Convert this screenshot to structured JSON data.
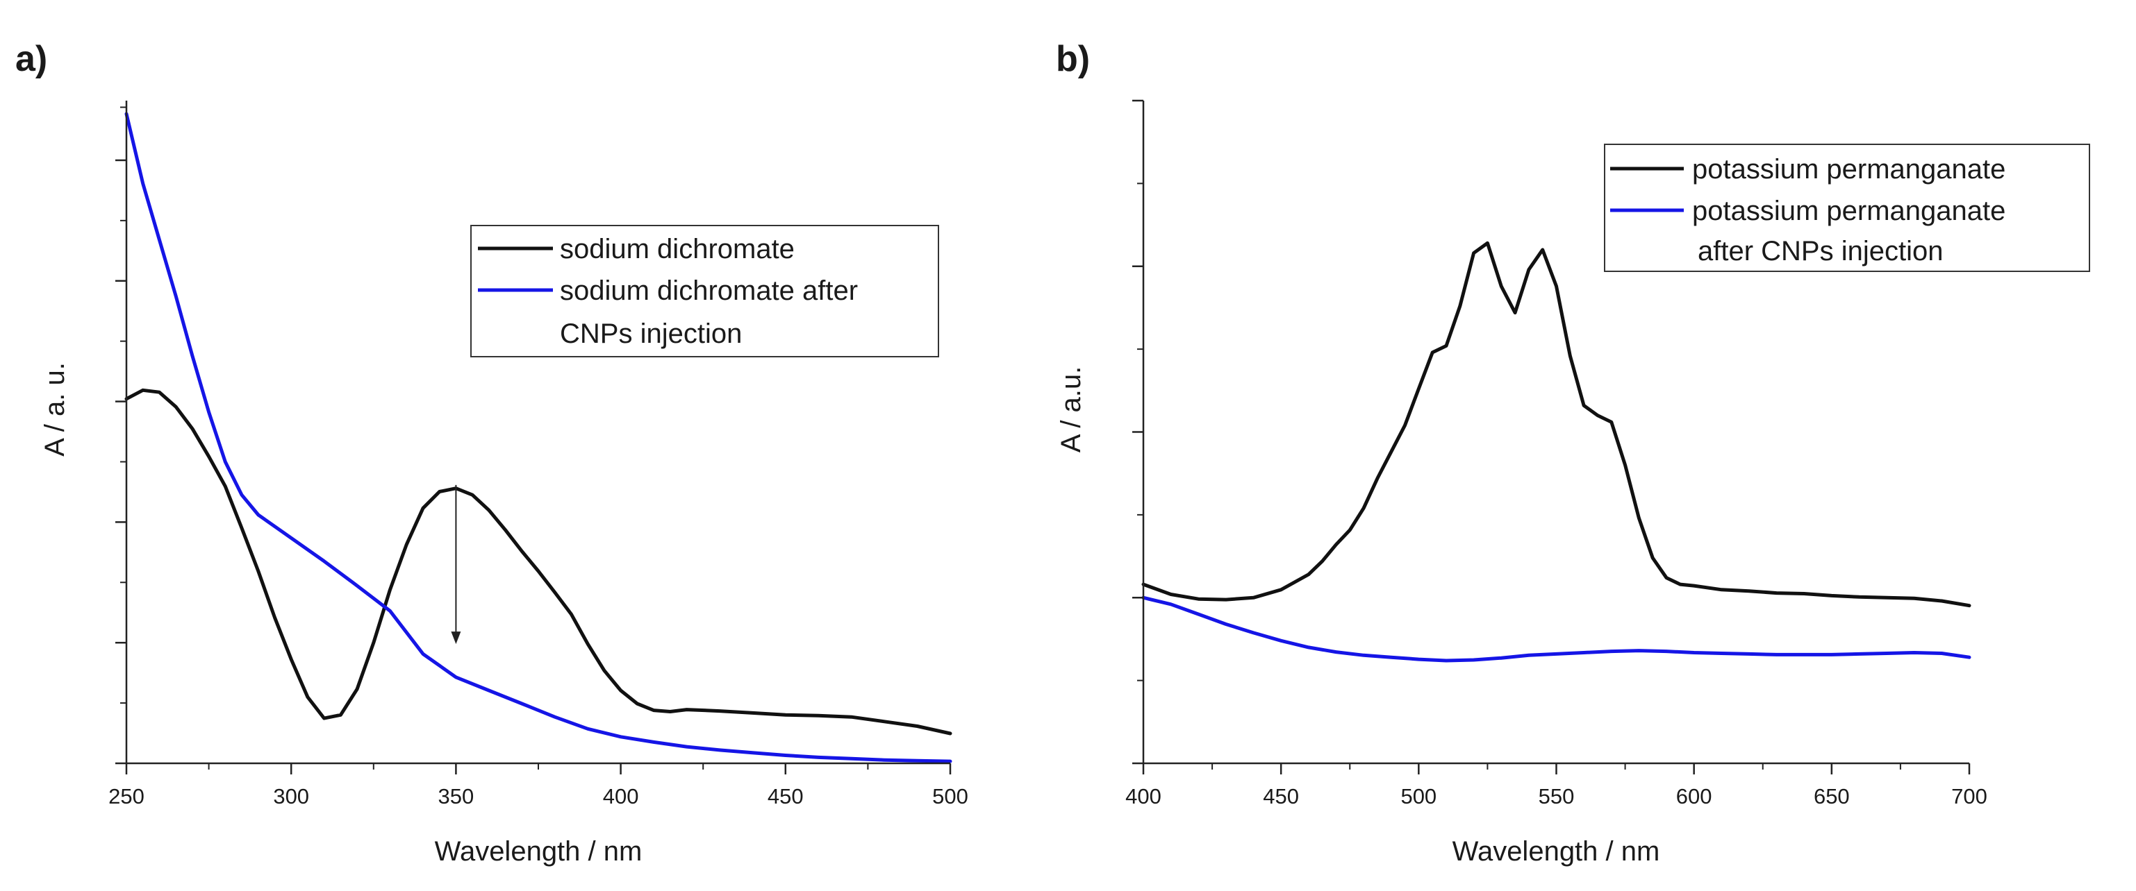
{
  "chart_data": [
    {
      "panel": "a)",
      "type": "line",
      "title": "",
      "xlabel": "Wavelength / nm",
      "ylabel": "A / a. u.",
      "xlim": [
        250,
        500
      ],
      "ylim": [
        0,
        1
      ],
      "xticks": [
        250,
        300,
        350,
        400,
        450,
        500
      ],
      "xtick_labels": [
        "250",
        "300",
        "350",
        "400",
        "450",
        "500"
      ],
      "y_major_ticks": [
        0,
        0.182,
        0.364,
        0.546,
        0.728,
        0.91
      ],
      "y_minor_ticks": [
        0.091,
        0.273,
        0.455,
        0.637,
        0.819,
        0.99
      ],
      "legend_position": "upper-right",
      "annotation": {
        "type": "arrow",
        "x": 350,
        "y_from": 0.42,
        "y_to": 0.18
      },
      "series": [
        {
          "name": "sodium dichromate",
          "legend_lines": [
            "sodium dichromate"
          ],
          "color": "#111111",
          "x": [
            250,
            255,
            260,
            265,
            270,
            275,
            280,
            285,
            290,
            295,
            300,
            305,
            310,
            315,
            320,
            325,
            330,
            335,
            340,
            345,
            350,
            355,
            360,
            365,
            370,
            375,
            380,
            385,
            390,
            395,
            400,
            405,
            410,
            415,
            420,
            430,
            440,
            450,
            460,
            470,
            480,
            490,
            500
          ],
          "y": [
            0.55,
            0.563,
            0.56,
            0.538,
            0.505,
            0.463,
            0.418,
            0.355,
            0.29,
            0.22,
            0.157,
            0.1,
            0.068,
            0.073,
            0.112,
            0.182,
            0.262,
            0.33,
            0.385,
            0.41,
            0.415,
            0.405,
            0.382,
            0.352,
            0.32,
            0.29,
            0.258,
            0.225,
            0.18,
            0.14,
            0.11,
            0.09,
            0.08,
            0.078,
            0.081,
            0.079,
            0.076,
            0.073,
            0.072,
            0.07,
            0.063,
            0.056,
            0.045
          ]
        },
        {
          "name": "sodium dichromate after CNPs injection",
          "legend_lines": [
            "sodium dichromate after",
            "CNPs injection"
          ],
          "color": "#1515e6",
          "x": [
            250,
            255,
            260,
            265,
            270,
            275,
            280,
            285,
            290,
            300,
            310,
            320,
            330,
            340,
            350,
            360,
            370,
            380,
            390,
            400,
            410,
            420,
            430,
            440,
            450,
            460,
            470,
            480,
            490,
            500
          ],
          "y": [
            0.98,
            0.875,
            0.79,
            0.705,
            0.615,
            0.53,
            0.455,
            0.405,
            0.375,
            0.34,
            0.305,
            0.268,
            0.23,
            0.165,
            0.13,
            0.11,
            0.09,
            0.07,
            0.052,
            0.04,
            0.032,
            0.025,
            0.02,
            0.016,
            0.012,
            0.009,
            0.007,
            0.005,
            0.004,
            0.003
          ]
        }
      ]
    },
    {
      "panel": "b)",
      "type": "line",
      "title": "",
      "xlabel": "Wavelength / nm",
      "ylabel": "A / a.u.",
      "xlim": [
        400,
        700
      ],
      "ylim": [
        0,
        1
      ],
      "xticks": [
        400,
        450,
        500,
        550,
        600,
        650,
        700
      ],
      "xtick_labels": [
        "400",
        "450",
        "500",
        "550",
        "600",
        "650",
        "700"
      ],
      "y_major_ticks": [
        0,
        0.25,
        0.5,
        0.75,
        1.0
      ],
      "y_minor_ticks": [
        0.125,
        0.375,
        0.625,
        0.875
      ],
      "legend_position": "upper-right",
      "series": [
        {
          "name": "potassium permanganate",
          "legend_lines": [
            "potassium permanganate"
          ],
          "color": "#111111",
          "x": [
            400,
            410,
            420,
            430,
            440,
            450,
            460,
            465,
            470,
            475,
            480,
            485,
            490,
            495,
            500,
            505,
            510,
            515,
            520,
            525,
            530,
            535,
            540,
            545,
            550,
            555,
            560,
            565,
            570,
            575,
            580,
            585,
            590,
            595,
            600,
            610,
            620,
            630,
            640,
            650,
            660,
            670,
            680,
            690,
            700
          ],
          "y": [
            0.27,
            0.255,
            0.248,
            0.247,
            0.25,
            0.262,
            0.285,
            0.305,
            0.33,
            0.352,
            0.385,
            0.43,
            0.47,
            0.51,
            0.565,
            0.62,
            0.63,
            0.69,
            0.77,
            0.785,
            0.72,
            0.68,
            0.745,
            0.775,
            0.72,
            0.615,
            0.54,
            0.525,
            0.515,
            0.45,
            0.37,
            0.31,
            0.28,
            0.27,
            0.268,
            0.262,
            0.26,
            0.257,
            0.256,
            0.253,
            0.251,
            0.25,
            0.249,
            0.245,
            0.238
          ]
        },
        {
          "name": "potassium permanganate after CNPs injection",
          "legend_lines": [
            "potassium permanganate",
            "after CNPs injection"
          ],
          "color": "#1515e6",
          "x": [
            400,
            410,
            420,
            430,
            440,
            450,
            460,
            470,
            480,
            490,
            500,
            510,
            520,
            530,
            540,
            550,
            560,
            570,
            580,
            590,
            600,
            610,
            620,
            630,
            640,
            650,
            660,
            670,
            680,
            690,
            700
          ],
          "y": [
            0.25,
            0.24,
            0.225,
            0.21,
            0.197,
            0.185,
            0.175,
            0.168,
            0.163,
            0.16,
            0.157,
            0.155,
            0.156,
            0.159,
            0.163,
            0.165,
            0.167,
            0.169,
            0.17,
            0.169,
            0.167,
            0.166,
            0.165,
            0.164,
            0.164,
            0.164,
            0.165,
            0.166,
            0.167,
            0.166,
            0.16
          ]
        }
      ]
    }
  ]
}
